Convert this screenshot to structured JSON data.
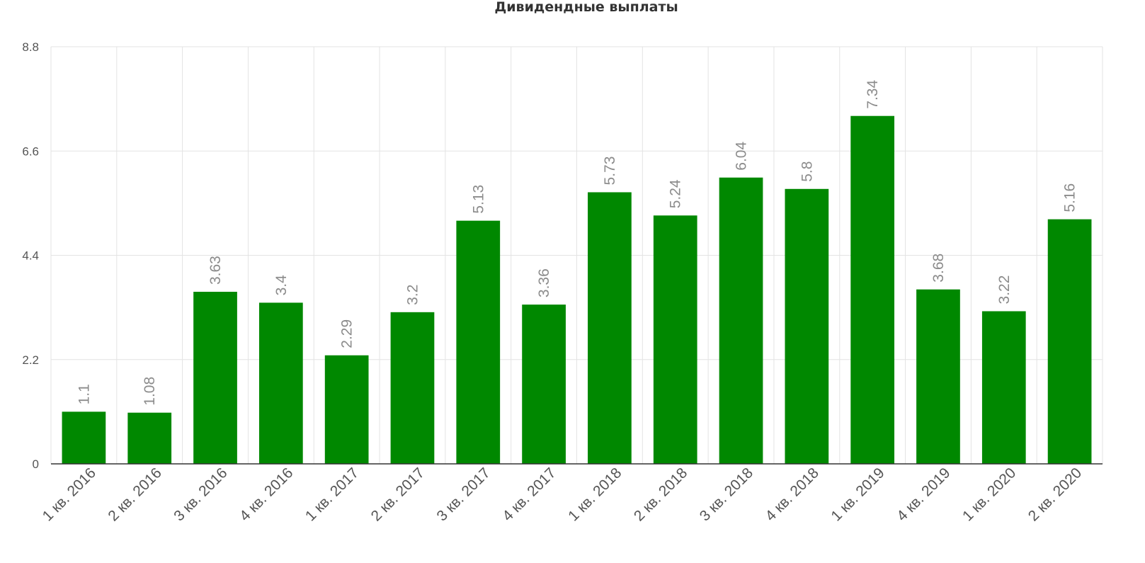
{
  "chart_data": {
    "type": "bar",
    "title": "Дивидендные выплаты",
    "xlabel": "",
    "ylabel": "",
    "categories": [
      "1 кв. 2016",
      "2 кв. 2016",
      "3 кв. 2016",
      "4 кв. 2016",
      "1 кв. 2017",
      "2 кв. 2017",
      "3 кв. 2017",
      "4 кв. 2017",
      "1 кв. 2018",
      "2 кв. 2018",
      "3 кв. 2018",
      "4 кв. 2018",
      "1 кв. 2019",
      "4 кв. 2019",
      "1 кв. 2020",
      "2 кв. 2020"
    ],
    "values": [
      1.1,
      1.08,
      3.63,
      3.4,
      2.29,
      3.2,
      5.13,
      3.36,
      5.73,
      5.24,
      6.04,
      5.8,
      7.34,
      3.68,
      3.22,
      5.16
    ],
    "data_labels": [
      "1.1",
      "1.08",
      "3.63",
      "3.4",
      "2.29",
      "3.2",
      "5.13",
      "3.36",
      "5.73",
      "5.24",
      "6.04",
      "5.8",
      "7.34",
      "3.68",
      "3.22",
      "5.16"
    ],
    "yticks": [
      0,
      2.2,
      4.4,
      6.6,
      8.8
    ],
    "ytick_labels": [
      "0",
      "2.2",
      "4.4",
      "6.6",
      "8.8"
    ],
    "ylim": [
      0,
      8.8
    ],
    "grid": true,
    "legend": "none",
    "bar_color": "#008800"
  }
}
